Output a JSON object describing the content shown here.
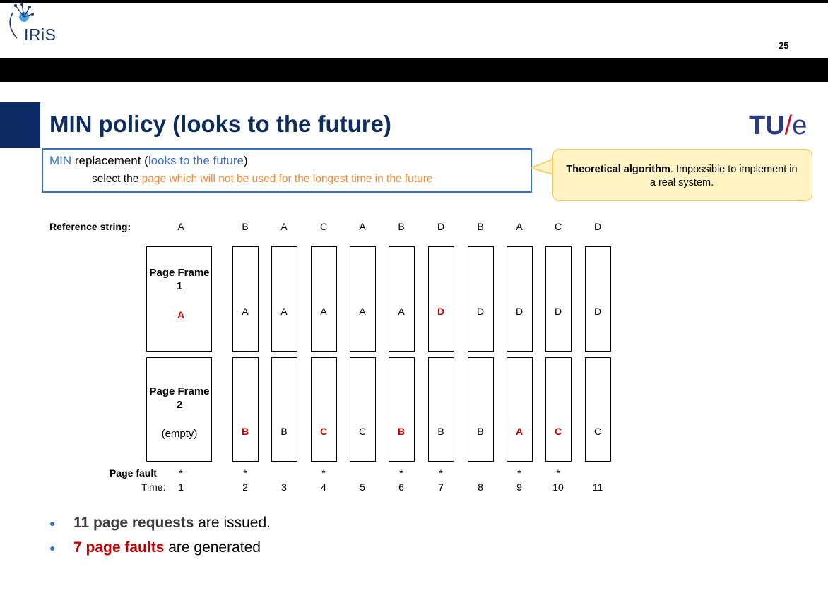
{
  "header": {
    "logo_text": "IRiS",
    "page_number": "25"
  },
  "slide": {
    "title": "MIN policy (looks to the future)",
    "brand": {
      "tu": "TU",
      "slash": "/",
      "e": "e"
    }
  },
  "definition": {
    "term": "MIN",
    "term_rest": " replacement (",
    "paren": "looks to the future",
    "close": ")",
    "line2_lead": "select the ",
    "line2_highlight": "page which will not be used for the longest time in the future"
  },
  "callout": {
    "bold": "Theoretical algorithm",
    "rest": ". Impossible to implement in a real system."
  },
  "table": {
    "reference_label": "Reference string:",
    "page_fault_label": "Page fault",
    "time_label": "Time:",
    "frame1_label": "Page Frame 1",
    "frame2_label": "Page Frame 2",
    "reference": [
      "A",
      "B",
      "A",
      "C",
      "A",
      "B",
      "D",
      "B",
      "A",
      "C",
      "D"
    ],
    "frame1": [
      "A",
      "A",
      "A",
      "A",
      "A",
      "A",
      "D",
      "D",
      "D",
      "D",
      "D"
    ],
    "frame2": [
      "(empty)",
      "B",
      "B",
      "C",
      "C",
      "B",
      "B",
      "B",
      "A",
      "C",
      "C"
    ],
    "frame1_fault": [
      true,
      false,
      false,
      false,
      false,
      false,
      true,
      false,
      false,
      false,
      false
    ],
    "frame2_fault": [
      false,
      true,
      false,
      true,
      false,
      true,
      false,
      false,
      true,
      true,
      false
    ],
    "faults": [
      "*",
      "*",
      "",
      "*",
      "",
      "*",
      "*",
      "",
      "*",
      "*",
      ""
    ],
    "time": [
      "1",
      "2",
      "3",
      "4",
      "5",
      "6",
      "7",
      "8",
      "9",
      "10",
      "11"
    ]
  },
  "bullets": [
    {
      "strong": "11 page requests",
      "rest": " are issued."
    },
    {
      "strong": "7 page faults",
      "rest": " are generated"
    }
  ],
  "colors": {
    "fault": "#c00000",
    "accent_blue": "#3a6fc4",
    "orange": "#ec8a3c",
    "navy": "#0d2d5f"
  }
}
